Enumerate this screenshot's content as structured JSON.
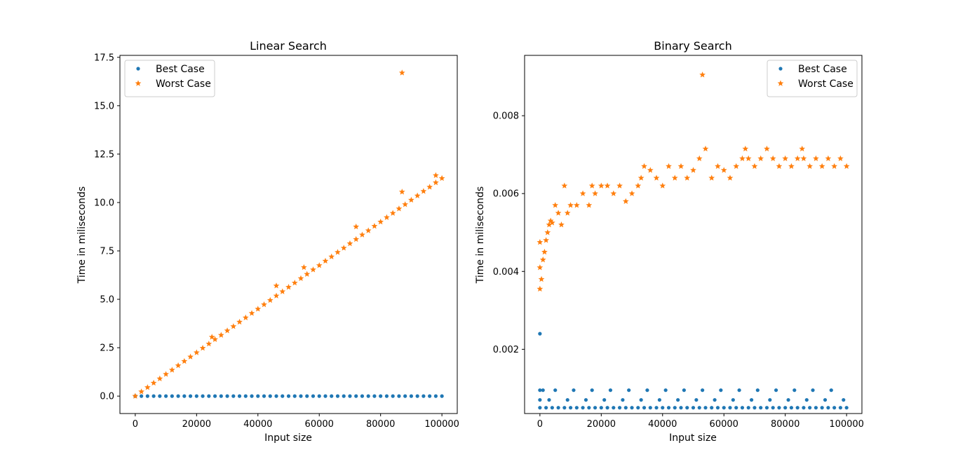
{
  "chart_data": [
    {
      "type": "scatter",
      "title": "Linear Search",
      "xlabel": "Input size",
      "ylabel": "Time in miliseconds",
      "xlim": [
        -5000,
        105000
      ],
      "ylim": [
        -0.9,
        17.6
      ],
      "xticks": [
        0,
        20000,
        40000,
        60000,
        80000,
        100000
      ],
      "xtick_labels": [
        "0",
        "20000",
        "40000",
        "60000",
        "80000",
        "100000"
      ],
      "yticks": [
        0,
        2.5,
        5,
        7.5,
        10,
        12.5,
        15,
        17.5
      ],
      "ytick_labels": [
        "0.0",
        "2.5",
        "5.0",
        "7.5",
        "10.0",
        "12.5",
        "15.0",
        "17.5"
      ],
      "grid": false,
      "legend_position": "top-left",
      "series": [
        {
          "name": "Best Case",
          "marker": "dot",
          "color": "#1f77b4",
          "x": [
            0,
            2000,
            4000,
            6000,
            8000,
            10000,
            12000,
            14000,
            16000,
            18000,
            20000,
            22000,
            24000,
            26000,
            28000,
            30000,
            32000,
            34000,
            36000,
            38000,
            40000,
            42000,
            44000,
            46000,
            48000,
            50000,
            52000,
            54000,
            56000,
            58000,
            60000,
            62000,
            64000,
            66000,
            68000,
            70000,
            72000,
            74000,
            76000,
            78000,
            80000,
            82000,
            84000,
            86000,
            88000,
            90000,
            92000,
            94000,
            96000,
            98000,
            100000
          ],
          "y": [
            0.001,
            0.001,
            0.001,
            0.001,
            0.001,
            0.001,
            0.001,
            0.001,
            0.001,
            0.001,
            0.001,
            0.001,
            0.001,
            0.001,
            0.001,
            0.001,
            0.001,
            0.001,
            0.001,
            0.001,
            0.001,
            0.001,
            0.001,
            0.001,
            0.001,
            0.001,
            0.001,
            0.001,
            0.001,
            0.001,
            0.001,
            0.001,
            0.001,
            0.001,
            0.001,
            0.001,
            0.001,
            0.001,
            0.001,
            0.001,
            0.001,
            0.001,
            0.001,
            0.001,
            0.001,
            0.001,
            0.001,
            0.001,
            0.001,
            0.001,
            0.001
          ]
        },
        {
          "name": "Worst Case",
          "marker": "star",
          "color": "#ff7f0e",
          "x": [
            0,
            2000,
            4000,
            6000,
            8000,
            10000,
            12000,
            14000,
            16000,
            18000,
            20000,
            22000,
            24000,
            26000,
            28000,
            30000,
            32000,
            34000,
            36000,
            38000,
            40000,
            42000,
            44000,
            46000,
            48000,
            50000,
            52000,
            54000,
            56000,
            58000,
            60000,
            62000,
            64000,
            66000,
            68000,
            70000,
            72000,
            74000,
            76000,
            78000,
            80000,
            82000,
            84000,
            86000,
            88000,
            90000,
            92000,
            94000,
            96000,
            98000,
            100000,
            25000,
            46000,
            55000,
            72000,
            87000,
            87000,
            98000
          ],
          "y": [
            0.0,
            0.23,
            0.45,
            0.68,
            0.9,
            1.13,
            1.35,
            1.58,
            1.8,
            2.03,
            2.25,
            2.48,
            2.7,
            2.93,
            3.15,
            3.38,
            3.6,
            3.83,
            4.05,
            4.28,
            4.5,
            4.73,
            4.95,
            5.18,
            5.4,
            5.63,
            5.85,
            6.08,
            6.3,
            6.53,
            6.75,
            6.98,
            7.2,
            7.43,
            7.65,
            7.88,
            8.1,
            8.33,
            8.55,
            8.78,
            9.0,
            9.23,
            9.45,
            9.68,
            9.9,
            10.13,
            10.35,
            10.58,
            10.8,
            11.03,
            11.25,
            3.05,
            5.7,
            6.65,
            8.75,
            10.55,
            16.7,
            11.4
          ]
        }
      ]
    },
    {
      "type": "scatter",
      "title": "Binary Search",
      "xlabel": "Input size",
      "ylabel": "Time in miliseconds",
      "xlim": [
        -5000,
        105000
      ],
      "ylim": [
        0.00035,
        0.00955
      ],
      "xticks": [
        0,
        20000,
        40000,
        60000,
        80000,
        100000
      ],
      "xtick_labels": [
        "0",
        "20000",
        "40000",
        "60000",
        "80000",
        "100000"
      ],
      "yticks": [
        0.002,
        0.004,
        0.006,
        0.008
      ],
      "ytick_labels": [
        "0.002",
        "0.004",
        "0.006",
        "0.008"
      ],
      "grid": false,
      "legend_position": "top-right",
      "series": [
        {
          "name": "Best Case",
          "marker": "dot",
          "color": "#1f77b4",
          "x": [
            0,
            0,
            0,
            0,
            2000,
            4000,
            6000,
            8000,
            10000,
            12000,
            14000,
            16000,
            18000,
            20000,
            22000,
            24000,
            26000,
            28000,
            30000,
            32000,
            34000,
            36000,
            38000,
            40000,
            42000,
            44000,
            46000,
            48000,
            50000,
            52000,
            54000,
            56000,
            58000,
            60000,
            62000,
            64000,
            66000,
            68000,
            70000,
            72000,
            74000,
            76000,
            78000,
            80000,
            82000,
            84000,
            86000,
            88000,
            90000,
            92000,
            94000,
            96000,
            98000,
            100000,
            3000,
            9000,
            15000,
            21000,
            27000,
            33000,
            39000,
            45000,
            51000,
            57000,
            63000,
            69000,
            75000,
            81000,
            87000,
            93000,
            99000,
            1000,
            5000,
            11000,
            17000,
            23000,
            29000,
            35000,
            41000,
            47000,
            53000,
            59000,
            65000,
            71000,
            77000,
            83000,
            89000,
            95000
          ],
          "y": [
            0.0024,
            0.00095,
            0.0007,
            0.0005,
            0.0005,
            0.0005,
            0.0005,
            0.0005,
            0.0005,
            0.0005,
            0.0005,
            0.0005,
            0.0005,
            0.0005,
            0.0005,
            0.0005,
            0.0005,
            0.0005,
            0.0005,
            0.0005,
            0.0005,
            0.0005,
            0.0005,
            0.0005,
            0.0005,
            0.0005,
            0.0005,
            0.0005,
            0.0005,
            0.0005,
            0.0005,
            0.0005,
            0.0005,
            0.0005,
            0.0005,
            0.0005,
            0.0005,
            0.0005,
            0.0005,
            0.0005,
            0.0005,
            0.0005,
            0.0005,
            0.0005,
            0.0005,
            0.0005,
            0.0005,
            0.0005,
            0.0005,
            0.0005,
            0.0005,
            0.0005,
            0.0005,
            0.0005,
            0.0007,
            0.0007,
            0.0007,
            0.0007,
            0.0007,
            0.0007,
            0.0007,
            0.0007,
            0.0007,
            0.0007,
            0.0007,
            0.0007,
            0.0007,
            0.0007,
            0.0007,
            0.0007,
            0.0007,
            0.00095,
            0.00095,
            0.00095,
            0.00095,
            0.00095,
            0.00095,
            0.00095,
            0.00095,
            0.00095,
            0.00095,
            0.00095,
            0.00095,
            0.00095,
            0.00095,
            0.00095,
            0.00095,
            0.00095
          ]
        },
        {
          "name": "Worst Case",
          "marker": "star",
          "color": "#ff7f0e",
          "x": [
            0,
            0,
            0,
            500,
            1000,
            1500,
            2000,
            2500,
            3000,
            3500,
            4000,
            5000,
            6000,
            7000,
            8000,
            9000,
            10000,
            12000,
            14000,
            16000,
            17000,
            18000,
            20000,
            22000,
            24000,
            26000,
            28000,
            30000,
            32000,
            33000,
            34000,
            36000,
            38000,
            40000,
            42000,
            44000,
            46000,
            48000,
            50000,
            52000,
            53000,
            54000,
            56000,
            58000,
            60000,
            62000,
            64000,
            66000,
            67000,
            68000,
            70000,
            72000,
            74000,
            76000,
            78000,
            80000,
            82000,
            84000,
            85500,
            86000,
            88000,
            90000,
            92000,
            94000,
            96000,
            98000,
            100000
          ],
          "y": [
            0.00355,
            0.0041,
            0.00475,
            0.0038,
            0.0043,
            0.0045,
            0.0048,
            0.005,
            0.0052,
            0.0053,
            0.00525,
            0.0057,
            0.0055,
            0.0052,
            0.0062,
            0.0055,
            0.0057,
            0.0057,
            0.006,
            0.0057,
            0.0062,
            0.006,
            0.0062,
            0.0062,
            0.006,
            0.0062,
            0.0058,
            0.006,
            0.0062,
            0.0064,
            0.0067,
            0.0066,
            0.0064,
            0.0062,
            0.0067,
            0.0064,
            0.0067,
            0.0064,
            0.0066,
            0.0069,
            0.00905,
            0.00715,
            0.0064,
            0.0067,
            0.0066,
            0.0064,
            0.0067,
            0.0069,
            0.00715,
            0.0069,
            0.0067,
            0.0069,
            0.00715,
            0.0069,
            0.0067,
            0.0069,
            0.0067,
            0.0069,
            0.00715,
            0.0069,
            0.0067,
            0.0069,
            0.0067,
            0.0069,
            0.0067,
            0.0069,
            0.0067
          ]
        }
      ]
    }
  ]
}
